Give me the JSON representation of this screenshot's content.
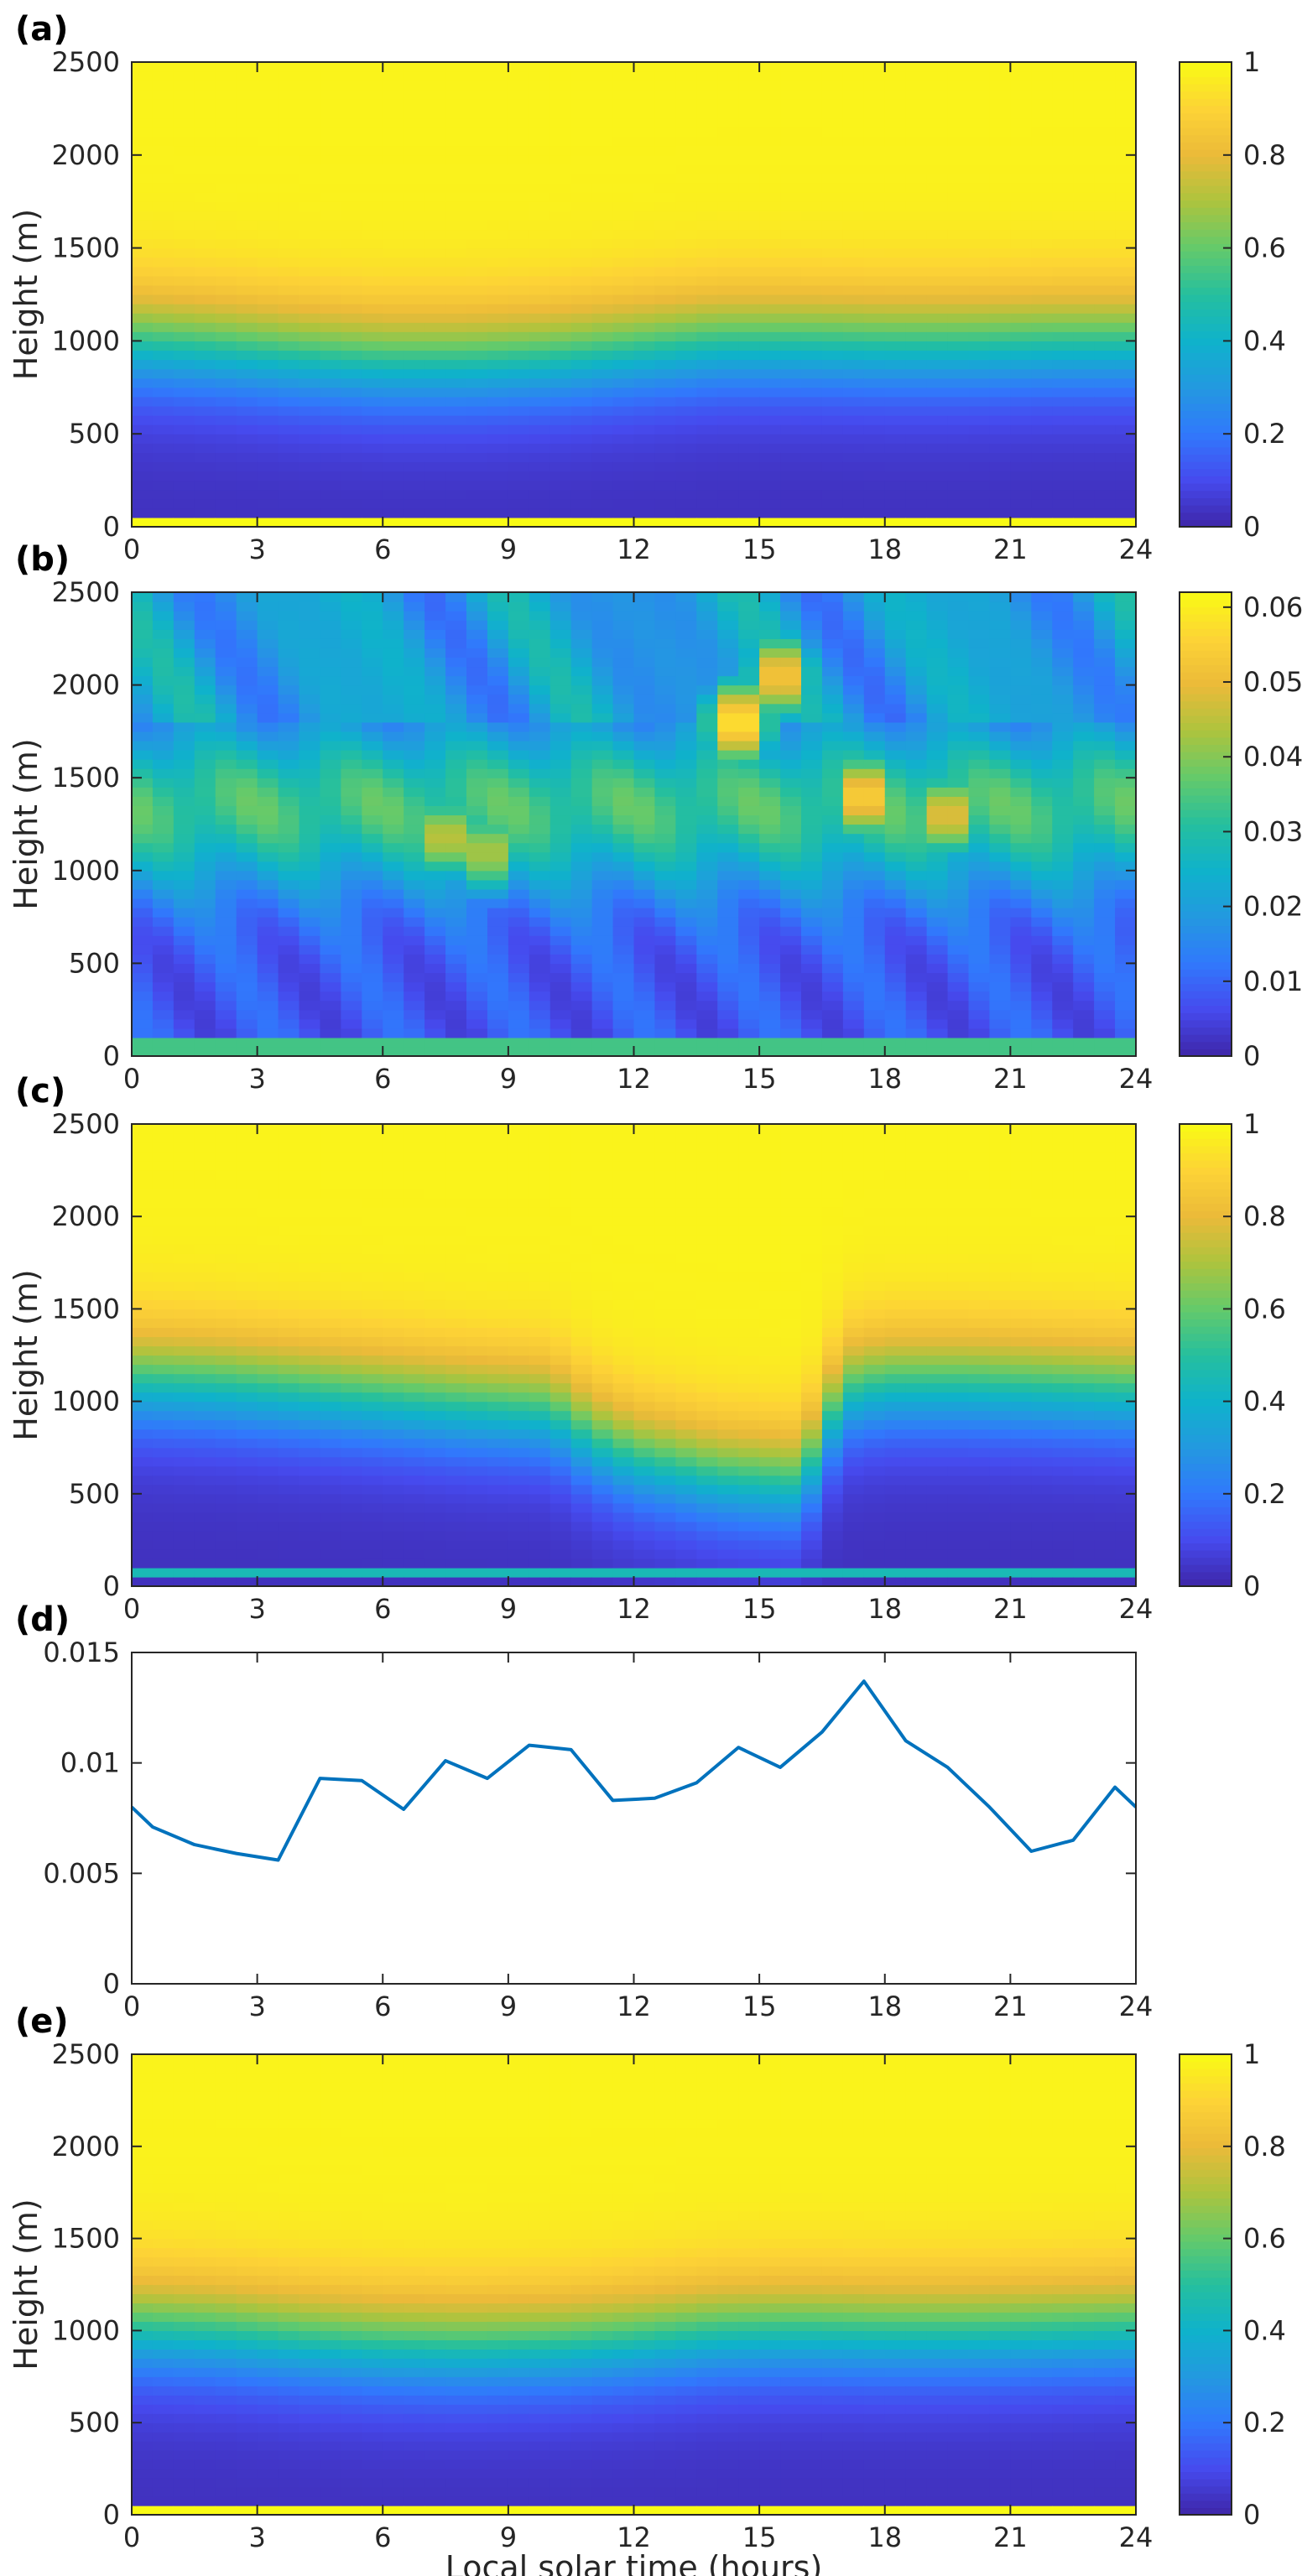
{
  "figure": {
    "xlabel": "Local solar time (hours)",
    "colors": {
      "line": "#0072BD",
      "axis": "#262626",
      "frame": "#262626"
    },
    "colormap": "parula"
  },
  "chart_data": [
    {
      "id": "a",
      "panel_label": "(a)",
      "type": "heatmap",
      "xlabel": "",
      "ylabel": "Height (m)",
      "xlim": [
        0,
        24
      ],
      "ylim": [
        0,
        2500
      ],
      "xticks": [
        0,
        3,
        6,
        9,
        12,
        15,
        18,
        21,
        24
      ],
      "yticks": [
        0,
        500,
        1000,
        1500,
        2000,
        2500
      ],
      "colorbar": {
        "lim": [
          0,
          1
        ],
        "ticks": [
          0,
          0.2,
          0.4,
          0.6,
          0.8,
          1
        ],
        "tick_labels": [
          "0",
          "0.2",
          "0.4",
          "0.6",
          "0.8",
          "1"
        ]
      },
      "description_values": {
        "bottom_band_height_m": 75,
        "bottom_band_value": 1.0,
        "transition_center_height_m": [
          1000,
          970,
          930,
          900,
          900,
          920,
          960,
          1000,
          1000,
          990,
          990,
          1000,
          1000
        ],
        "transition_hours": [
          0,
          2,
          4,
          6,
          8,
          10,
          12,
          14,
          16,
          18,
          20,
          22,
          24
        ],
        "low_value": 0.03,
        "high_value": 0.98
      }
    },
    {
      "id": "b",
      "panel_label": "(b)",
      "type": "heatmap",
      "xlabel": "",
      "ylabel": "Height (m)",
      "xlim": [
        0,
        24
      ],
      "ylim": [
        0,
        2500
      ],
      "xticks": [
        0,
        3,
        6,
        9,
        12,
        15,
        18,
        21,
        24
      ],
      "yticks": [
        0,
        500,
        1000,
        1500,
        2000,
        2500
      ],
      "colorbar": {
        "lim": [
          0,
          0.062
        ],
        "ticks": [
          0,
          0.01,
          0.02,
          0.03,
          0.04,
          0.05,
          0.06
        ],
        "tick_labels": [
          "0",
          "0.01",
          "0.02",
          "0.03",
          "0.04",
          "0.05",
          "0.06"
        ]
      },
      "description_values": {
        "hotspots": [
          {
            "hour": 14.5,
            "height_m": 1800,
            "value": 0.062
          },
          {
            "hour": 15.5,
            "height_m": 2050,
            "value": 0.056
          },
          {
            "hour": 17.5,
            "height_m": 1400,
            "value": 0.058
          },
          {
            "hour": 19.5,
            "height_m": 1300,
            "value": 0.052
          },
          {
            "hour": 7.5,
            "height_m": 1180,
            "value": 0.048
          },
          {
            "hour": 8.5,
            "height_m": 1100,
            "value": 0.046
          }
        ],
        "background_upper": 0.02,
        "background_lower": 0.008,
        "mid_layer": 0.034
      }
    },
    {
      "id": "c",
      "panel_label": "(c)",
      "type": "heatmap",
      "xlabel": "",
      "ylabel": "Height (m)",
      "xlim": [
        0,
        24
      ],
      "ylim": [
        0,
        2500
      ],
      "xticks": [
        0,
        3,
        6,
        9,
        12,
        15,
        18,
        21,
        24
      ],
      "yticks": [
        0,
        500,
        1000,
        1500,
        2000,
        2500
      ],
      "colorbar": {
        "lim": [
          0,
          1
        ],
        "ticks": [
          0,
          0.2,
          0.4,
          0.6,
          0.8,
          1
        ],
        "tick_labels": [
          "0",
          "0.2",
          "0.4",
          "0.6",
          "0.8",
          "1"
        ]
      },
      "description_values": {
        "bottom_line_height_m": 60,
        "bottom_line_value": 0.45,
        "transition_center_height_m": [
          1120,
          1100,
          1060,
          1020,
          980,
          950,
          800,
          700,
          600,
          560,
          1050,
          1100,
          1100,
          1080,
          1060
        ],
        "transition_hours": [
          0,
          2,
          4,
          6,
          8,
          10,
          11,
          12,
          14,
          16,
          17,
          18,
          20,
          22,
          24
        ],
        "low_value": 0.03,
        "high_value": 0.98
      }
    },
    {
      "id": "d",
      "panel_label": "(d)",
      "type": "line",
      "xlabel": "",
      "ylabel": "",
      "xlim": [
        0,
        24
      ],
      "ylim": [
        0,
        0.015
      ],
      "xticks": [
        0,
        3,
        6,
        9,
        12,
        15,
        18,
        21,
        24
      ],
      "yticks": [
        0,
        0.005,
        0.01,
        0.015
      ],
      "ytick_labels": [
        "0",
        "0.005",
        "0.01",
        "0.015"
      ],
      "series": [
        {
          "x": [
            0,
            0.5,
            1.5,
            2.5,
            3.5,
            4.5,
            5.5,
            6.5,
            7.5,
            8.5,
            9.5,
            10.5,
            11.5,
            12.5,
            13.5,
            14.5,
            15.5,
            16.5,
            17.5,
            18.5,
            19.5,
            20.5,
            21.5,
            22.5,
            23.5,
            24
          ],
          "values": [
            0.008,
            0.0071,
            0.0063,
            0.0059,
            0.0056,
            0.0093,
            0.0092,
            0.0079,
            0.0101,
            0.0093,
            0.0108,
            0.0106,
            0.0083,
            0.0084,
            0.0091,
            0.0107,
            0.0098,
            0.0114,
            0.0137,
            0.011,
            0.0098,
            0.008,
            0.006,
            0.0065,
            0.0089,
            0.008
          ]
        }
      ]
    },
    {
      "id": "e",
      "panel_label": "(e)",
      "type": "heatmap",
      "xlabel": "Local solar time (hours)",
      "ylabel": "Height (m)",
      "xlim": [
        0,
        24
      ],
      "ylim": [
        0,
        2500
      ],
      "xticks": [
        0,
        3,
        6,
        9,
        12,
        15,
        18,
        21,
        24
      ],
      "yticks": [
        0,
        500,
        1000,
        1500,
        2000,
        2500
      ],
      "colorbar": {
        "lim": [
          0,
          1
        ],
        "ticks": [
          0,
          0.2,
          0.4,
          0.6,
          0.8,
          1
        ],
        "tick_labels": [
          "0",
          "0.2",
          "0.4",
          "0.6",
          "0.8",
          "1"
        ]
      },
      "description_values": {
        "bottom_band_height_m": 75,
        "bottom_band_value": 1.0,
        "transition_center_height_m": [
          1020,
          1000,
          960,
          930,
          920,
          930,
          960,
          1000,
          1010,
          1000,
          1000,
          1010,
          1020
        ],
        "transition_hours": [
          0,
          2,
          4,
          6,
          8,
          10,
          12,
          14,
          16,
          18,
          20,
          22,
          24
        ],
        "low_value": 0.03,
        "high_value": 0.98
      }
    }
  ]
}
